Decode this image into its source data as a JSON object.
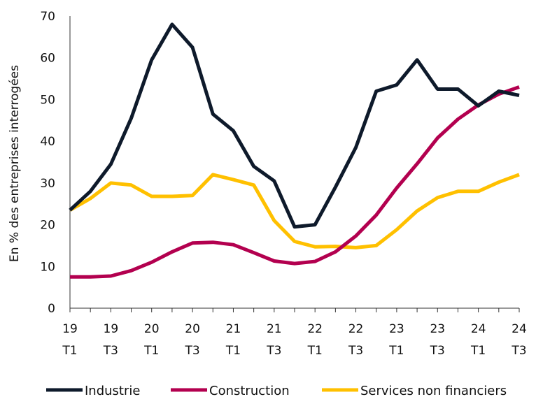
{
  "chart_data": {
    "type": "line",
    "title": "",
    "ylabel": "En % des entreprises interrogées",
    "xlabel": "",
    "ylim": [
      0,
      70
    ],
    "yticks": [
      0,
      10,
      20,
      30,
      40,
      50,
      60,
      70
    ],
    "grid": false,
    "legend_position": "bottom",
    "x_ticks": [
      {
        "year": "19",
        "quarter": "T1"
      },
      {
        "year": "19",
        "quarter": "T3"
      },
      {
        "year": "20",
        "quarter": "T1"
      },
      {
        "year": "20",
        "quarter": "T3"
      },
      {
        "year": "21",
        "quarter": "T1"
      },
      {
        "year": "21",
        "quarter": "T3"
      },
      {
        "year": "22",
        "quarter": "T1"
      },
      {
        "year": "22",
        "quarter": "T3"
      },
      {
        "year": "23",
        "quarter": "T1"
      },
      {
        "year": "23",
        "quarter": "T3"
      },
      {
        "year": "24",
        "quarter": "T1"
      },
      {
        "year": "24",
        "quarter": "T3"
      }
    ],
    "x": [
      "19T1",
      "19T2",
      "19T3",
      "19T4",
      "20T1",
      "20T2",
      "20T3",
      "20T4",
      "21T1",
      "21T2",
      "21T3",
      "21T4",
      "22T1",
      "22T2",
      "22T3",
      "22T4",
      "23T1",
      "23T2",
      "23T3",
      "23T4",
      "24T1",
      "24T2",
      "24T3"
    ],
    "series": [
      {
        "name": "Industrie",
        "color": "#0e1a2b",
        "values": [
          23.5,
          28,
          34.5,
          45.5,
          59.5,
          68,
          62.5,
          46.5,
          42.5,
          34,
          30.5,
          19.5,
          20,
          29,
          38.5,
          52,
          53.5,
          59.5,
          52.5,
          52.5,
          48.5,
          52,
          51
        ]
      },
      {
        "name": "Construction",
        "color": "#b3004f",
        "values": [
          7.5,
          7.5,
          7.7,
          9,
          11,
          13.5,
          15.6,
          15.8,
          15.2,
          13.3,
          11.3,
          10.7,
          11.2,
          13.5,
          17.3,
          22.3,
          28.8,
          34.6,
          40.8,
          45.3,
          48.7,
          51.3,
          53
        ]
      },
      {
        "name": "Services non financiers",
        "color": "#ffc000",
        "values": [
          23.5,
          26.3,
          30,
          29.5,
          26.8,
          26.8,
          27,
          32,
          30.8,
          29.5,
          21,
          16,
          14.7,
          14.8,
          14.5,
          15,
          18.8,
          23.3,
          26.5,
          28,
          28,
          30.2,
          32
        ]
      }
    ]
  }
}
